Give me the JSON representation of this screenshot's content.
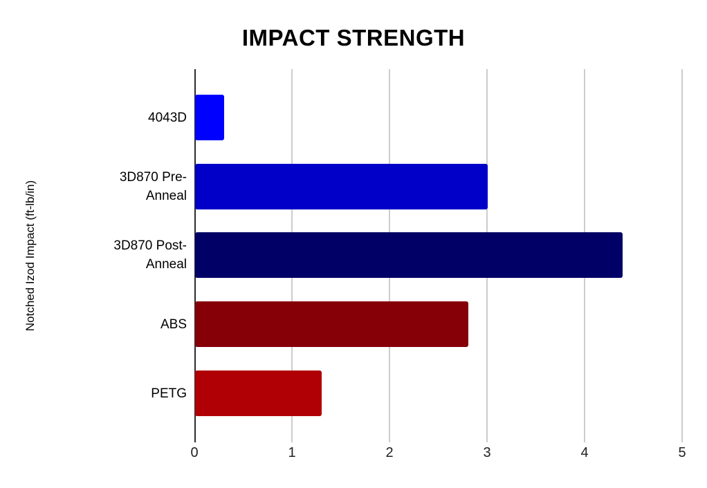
{
  "chart_data": {
    "type": "bar",
    "orientation": "horizontal",
    "title": "IMPACT STRENGTH",
    "category_axis_label": "Notched Izod Impact (ft-lb/in)",
    "categories": [
      "4043D",
      "3D870 Pre-Anneal",
      "3D870 Post-Anneal",
      "ABS",
      "PETG"
    ],
    "category_label_lines": [
      [
        "4043D"
      ],
      [
        "3D870 Pre-",
        "Anneal"
      ],
      [
        "3D870 Post-",
        "Anneal"
      ],
      [
        "ABS"
      ],
      [
        "PETG"
      ]
    ],
    "values": [
      0.3,
      3,
      4.38,
      2.8,
      1.3
    ],
    "bar_colors": [
      "#0000ff",
      "#0000c8",
      "#000066",
      "#860008",
      "#b00005"
    ],
    "x_ticks": [
      "0",
      "1",
      "2",
      "3",
      "4",
      "5"
    ],
    "xlim": [
      0,
      5
    ],
    "grid": true,
    "legend": "none",
    "gridline_color": "#cccccc",
    "axis_line_color": "#2b2b2b",
    "background_color": "#ffffff",
    "text_color": "#000000"
  }
}
